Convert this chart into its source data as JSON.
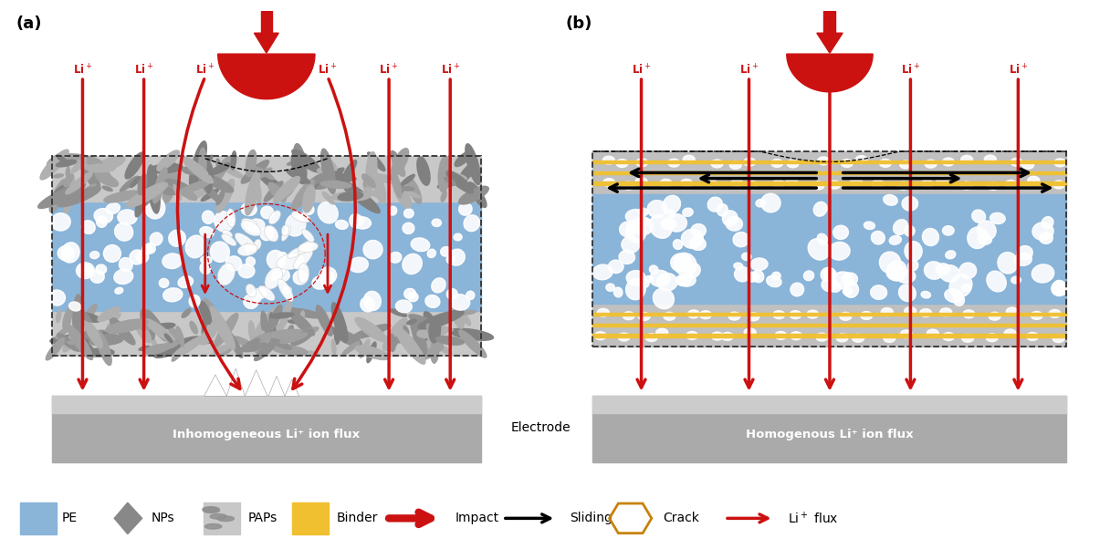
{
  "fig_width": 12.16,
  "fig_height": 6.13,
  "bg_color": "#ffffff",
  "panel_a_label": "(a)",
  "panel_b_label": "(b)",
  "pe_color": "#8ab4d8",
  "pap_fill_color": "#c8c8c8",
  "pap_stone_color": "#999999",
  "electrode_color": "#aaaaaa",
  "electrode_top_color": "#cccccc",
  "binder_color": "#f0c030",
  "red_color": "#cc1111",
  "crack_color": "#c8820a",
  "li_color": "#cc1111",
  "label_a": "Inhomogeneous Li⁺ ion flux",
  "label_b": "Homogenous Li⁺ ion flux",
  "electrode_label": "Electrode"
}
